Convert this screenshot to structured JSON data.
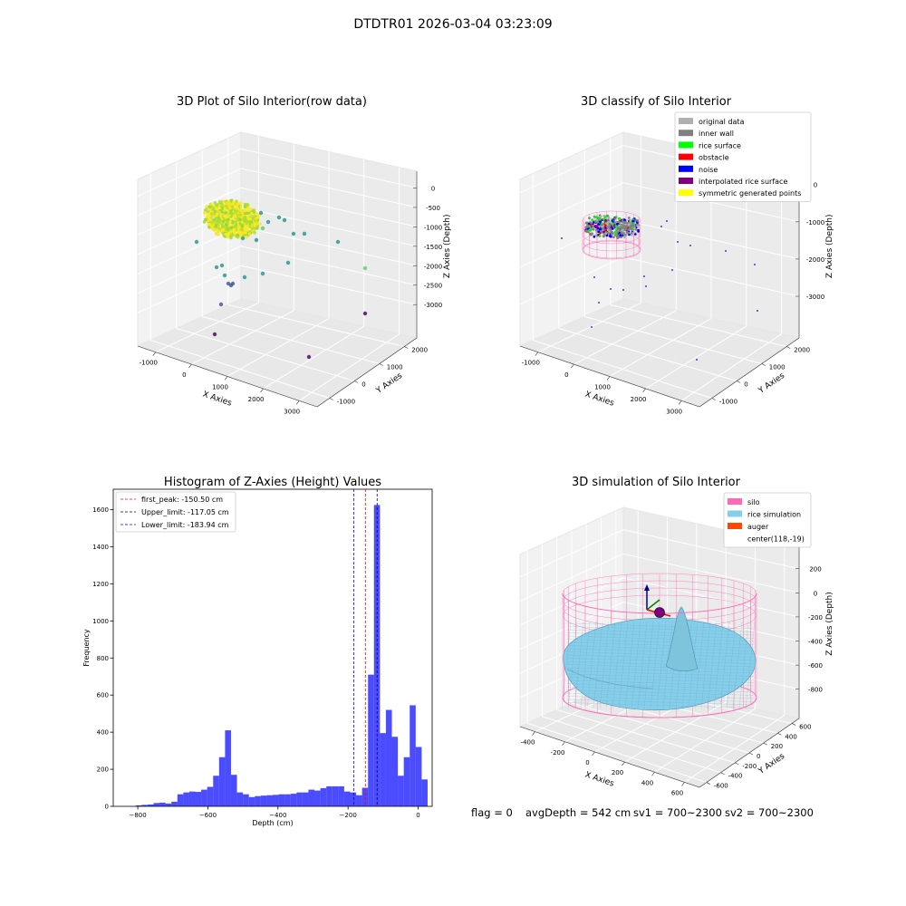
{
  "figure_title": "DTDTR01 2026-03-04 03:23:09",
  "footer": {
    "flag": "flag = 0",
    "avg_depth": "avgDepth = 542 cm",
    "sv1": "sv1 = 700~2300",
    "sv2": "sv2 = 700~2300"
  },
  "chart_data": [
    {
      "id": "raw",
      "type": "scatter",
      "title": "3D Plot of Silo Interior(row data)",
      "xlabel": "X Axies",
      "ylabel": "Y Axies",
      "zlabel": "Z Axies (Depth)",
      "x_ticks": [
        "-1000",
        "0",
        "1000",
        "2000",
        "3000"
      ],
      "y_ticks": [
        "-1000",
        "0",
        "1000",
        "2000"
      ],
      "z_ticks": [
        "0",
        "-500",
        "-1000",
        "-1500",
        "-2000",
        "-2500",
        "-3000"
      ],
      "colormap": [
        "#440154",
        "#3b528b",
        "#21918c",
        "#5ec962",
        "#fde725"
      ]
    },
    {
      "id": "classify",
      "type": "scatter",
      "title": "3D classify of Silo Interior",
      "xlabel": "X Axies",
      "ylabel": "Y Axies",
      "zlabel": "Z Axies (Depth)",
      "x_ticks": [
        "-1000",
        "0",
        "1000",
        "2000",
        "3000"
      ],
      "y_ticks": [
        "-1000",
        "0",
        "1000",
        "2000"
      ],
      "z_ticks": [
        "0",
        "-1000",
        "-2000",
        "-3000"
      ],
      "legend_position": "top-right",
      "legend": [
        {
          "label": "original data",
          "color": "#b0b0b0"
        },
        {
          "label": "inner wall",
          "color": "#808080"
        },
        {
          "label": "rice surface",
          "color": "#00ff00"
        },
        {
          "label": "obstacle",
          "color": "#ff0000"
        },
        {
          "label": "noise",
          "color": "#0000ff"
        },
        {
          "label": "interpolated rice surface",
          "color": "#800080"
        },
        {
          "label": "symmetric generated points",
          "color": "#ffff00"
        }
      ]
    },
    {
      "id": "hist",
      "type": "bar",
      "title": "Histogram of Z-Axies (Height) Values",
      "xlabel": "Depth (cm)",
      "ylabel": "Frequency",
      "xlim": [
        -870,
        40
      ],
      "ylim": [
        0,
        1710
      ],
      "x_ticks": [
        -800,
        -600,
        -400,
        -200,
        0
      ],
      "y_ticks": [
        0,
        200,
        400,
        600,
        800,
        1000,
        1200,
        1400,
        1600
      ],
      "bin_width": 17,
      "bin_start": -806,
      "values": [
        5,
        8,
        10,
        18,
        20,
        15,
        25,
        65,
        75,
        80,
        78,
        90,
        105,
        165,
        265,
        410,
        170,
        75,
        65,
        50,
        55,
        58,
        60,
        62,
        65,
        65,
        68,
        75,
        75,
        90,
        85,
        98,
        108,
        108,
        108,
        80,
        75,
        60,
        100,
        710,
        1625,
        395,
        520,
        375,
        165,
        265,
        545,
        320,
        145
      ],
      "bar_color": "#0000ff",
      "bar_alpha": 0.7,
      "vlines": [
        {
          "label": "first_peak: -150.50 cm",
          "x": -150.5,
          "color": "#ff0000"
        },
        {
          "label": "Upper_limit: -117.05 cm",
          "x": -117.05,
          "color": "#00008b"
        },
        {
          "label": "Lower_limit: -183.94 cm",
          "x": -183.94,
          "color": "#0000ff"
        }
      ],
      "legend_position": "top-left"
    },
    {
      "id": "sim",
      "type": "surface",
      "title": "3D simulation of Silo Interior",
      "xlabel": "X Axies",
      "ylabel": "Y Axies",
      "zlabel": "Z Axies (Depth)",
      "x_ticks": [
        "-400",
        "-200",
        "0",
        "200",
        "400",
        "600"
      ],
      "y_ticks": [
        "-600",
        "-400",
        "-200",
        "0",
        "200",
        "400",
        "600"
      ],
      "z_ticks": [
        "200",
        "0",
        "-200",
        "-400",
        "-600",
        "-800"
      ],
      "legend_position": "top-right",
      "legend": [
        {
          "label": "silo",
          "color": "#ff69b4"
        },
        {
          "label": "rice simulation",
          "color": "#87ceeb"
        },
        {
          "label": "auger",
          "color": "#ff4500"
        },
        {
          "label": "center(118,-19)",
          "color": ""
        }
      ]
    }
  ]
}
